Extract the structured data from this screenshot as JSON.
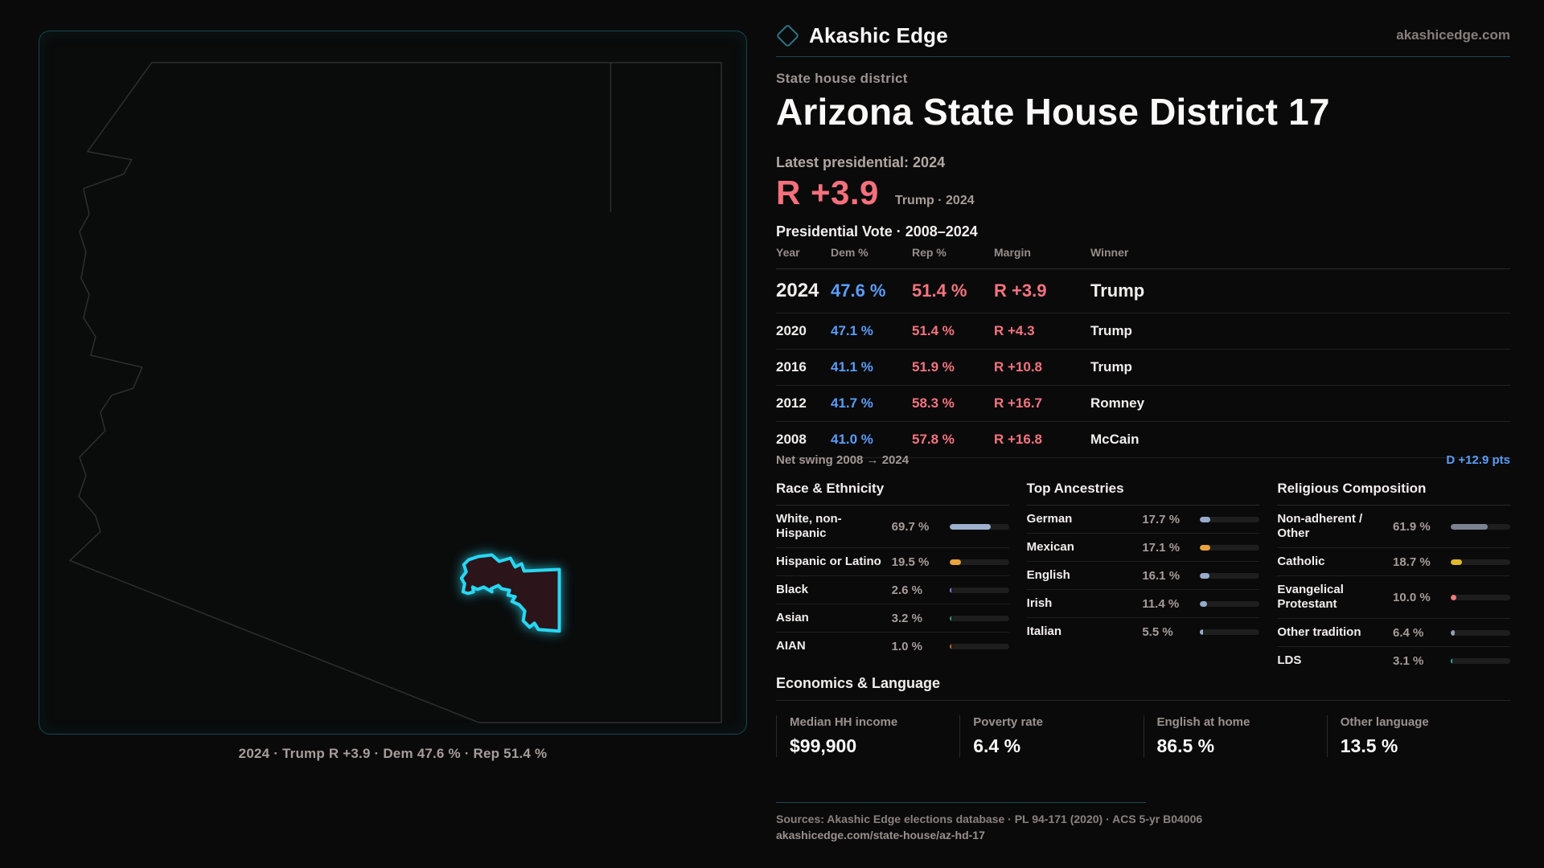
{
  "brand": {
    "name": "Akashic Edge",
    "site": "akashicedge.com"
  },
  "map": {
    "caption": "2024 · Trump R +3.9 · Dem 47.6 % · Rep 51.4 %",
    "district_color": "#29d7f2",
    "district_fill": "#2b151a",
    "state_outline_color": "#2e2e2e"
  },
  "header": {
    "kicker": "State house district",
    "title": "Arizona State House District 17",
    "latest": "Latest presidential: 2024",
    "margin_value": "R +3.9",
    "margin_note": "Trump · 2024"
  },
  "vote_table": {
    "title": "Presidential Vote · 2008–2024",
    "columns": [
      "Year",
      "Dem %",
      "Rep %",
      "Margin",
      "Winner"
    ],
    "rows": [
      {
        "year": "2024",
        "dem": "47.6 %",
        "rep": "51.4 %",
        "margin": "R +3.9",
        "winner": "Trump"
      },
      {
        "year": "2020",
        "dem": "47.1 %",
        "rep": "51.4 %",
        "margin": "R +4.3",
        "winner": "Trump"
      },
      {
        "year": "2016",
        "dem": "41.1 %",
        "rep": "51.9 %",
        "margin": "R +10.8",
        "winner": "Trump"
      },
      {
        "year": "2012",
        "dem": "41.7 %",
        "rep": "58.3 %",
        "margin": "R +16.7",
        "winner": "Romney"
      },
      {
        "year": "2008",
        "dem": "41.0 %",
        "rep": "57.8 %",
        "margin": "R +16.8",
        "winner": "McCain"
      }
    ],
    "net_swing_label": "Net swing 2008 → 2024",
    "net_swing_value": "D +12.9 pts"
  },
  "demographics": {
    "sections": [
      {
        "title": "Race & Ethnicity",
        "items": [
          {
            "label": "White, non-Hispanic",
            "value": "69.7 %",
            "pct": 69.7,
            "color": "#9db1cf"
          },
          {
            "label": "Hispanic or Latino",
            "value": "19.5 %",
            "pct": 19.5,
            "color": "#e8a33c"
          },
          {
            "label": "Black",
            "value": "2.6 %",
            "pct": 2.6,
            "color": "#8b7be8"
          },
          {
            "label": "Asian",
            "value": "3.2 %",
            "pct": 3.2,
            "color": "#25a57f"
          },
          {
            "label": "AIAN",
            "value": "1.0 %",
            "pct": 1.0,
            "color": "#c46a2b"
          }
        ]
      },
      {
        "title": "Top Ancestries",
        "items": [
          {
            "label": "German",
            "value": "17.7 %",
            "pct": 17.7,
            "color": "#97accb"
          },
          {
            "label": "Mexican",
            "value": "17.1 %",
            "pct": 17.1,
            "color": "#e8a33c"
          },
          {
            "label": "English",
            "value": "16.1 %",
            "pct": 16.1,
            "color": "#97accb"
          },
          {
            "label": "Irish",
            "value": "11.4 %",
            "pct": 11.4,
            "color": "#97accb"
          },
          {
            "label": "Italian",
            "value": "5.5 %",
            "pct": 5.5,
            "color": "#97accb"
          }
        ]
      },
      {
        "title": "Religious Composition",
        "items": [
          {
            "label": "Non-adherent / Other",
            "value": "61.9 %",
            "pct": 61.9,
            "color": "#7b8391"
          },
          {
            "label": "Catholic",
            "value": "18.7 %",
            "pct": 18.7,
            "color": "#ddb92c"
          },
          {
            "label": "Evangelical Protestant",
            "value": "10.0 %",
            "pct": 10.0,
            "color": "#e87b7b"
          },
          {
            "label": "Other tradition",
            "value": "6.4 %",
            "pct": 6.4,
            "color": "#93a0b4"
          },
          {
            "label": "LDS",
            "value": "3.1 %",
            "pct": 3.1,
            "color": "#1fb5a3"
          }
        ]
      }
    ]
  },
  "economics": {
    "title": "Economics & Language",
    "stats": [
      {
        "label": "Median HH income",
        "value": "$99,900"
      },
      {
        "label": "Poverty rate",
        "value": "6.4 %"
      },
      {
        "label": "English at home",
        "value": "86.5 %"
      },
      {
        "label": "Other language",
        "value": "13.5 %"
      }
    ]
  },
  "footer": {
    "sources": "Sources: Akashic Edge elections database · PL 94-171 (2020) · ACS 5-yr B04006",
    "permalink": "akashicedge.com/state-house/az-hd-17"
  }
}
